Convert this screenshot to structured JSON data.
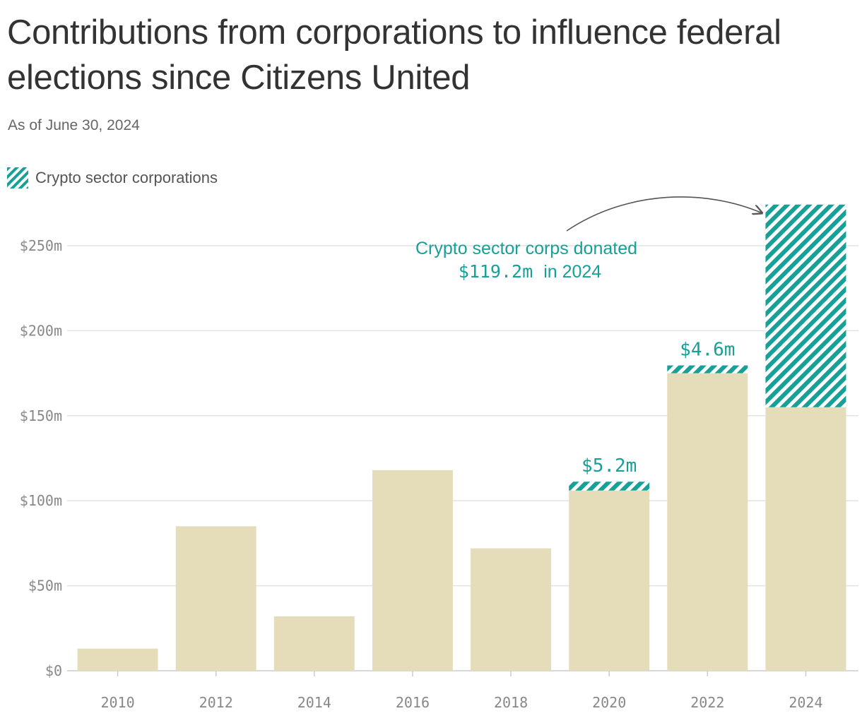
{
  "chart_data": {
    "type": "bar",
    "title": "Contributions from corporations to influence federal elections since Citizens United",
    "subtitle": "As of June 30, 2024",
    "categories": [
      "2010",
      "2012",
      "2014",
      "2016",
      "2018",
      "2020",
      "2022",
      "2024"
    ],
    "series": [
      {
        "key": "other",
        "values": [
          13,
          85,
          32,
          118,
          72,
          106,
          175,
          155
        ],
        "color": "#e5ddb9"
      },
      {
        "name": "Crypto sector corporations",
        "key": "crypto",
        "values": [
          0,
          0,
          0,
          0,
          0,
          5.2,
          4.6,
          119.2
        ],
        "color": "#17a098",
        "pattern": "diagonal-stripes"
      }
    ],
    "stacked": true,
    "ylim": [
      0,
      250
    ],
    "yticks": [
      0,
      50,
      100,
      150,
      200,
      250
    ],
    "ytick_labels": [
      "$0",
      "$50m",
      "$100m",
      "$150m",
      "$200m",
      "$250m"
    ],
    "data_labels": [
      {
        "category": "2020",
        "text": "$5.2m"
      },
      {
        "category": "2022",
        "text": "$4.6m"
      }
    ],
    "annotation": {
      "line1": "Crypto sector corps donated",
      "amount": "$119.2m",
      "suffix": "in 2024",
      "target": "2024"
    },
    "legend": {
      "label": "Crypto sector corporations",
      "placement": "top-left"
    },
    "grid": true,
    "colors": {
      "accent": "#17a098",
      "bar": "#e5ddb9",
      "grid": "#e3e3e3",
      "tick": "#888888",
      "arrow": "#555555"
    }
  }
}
